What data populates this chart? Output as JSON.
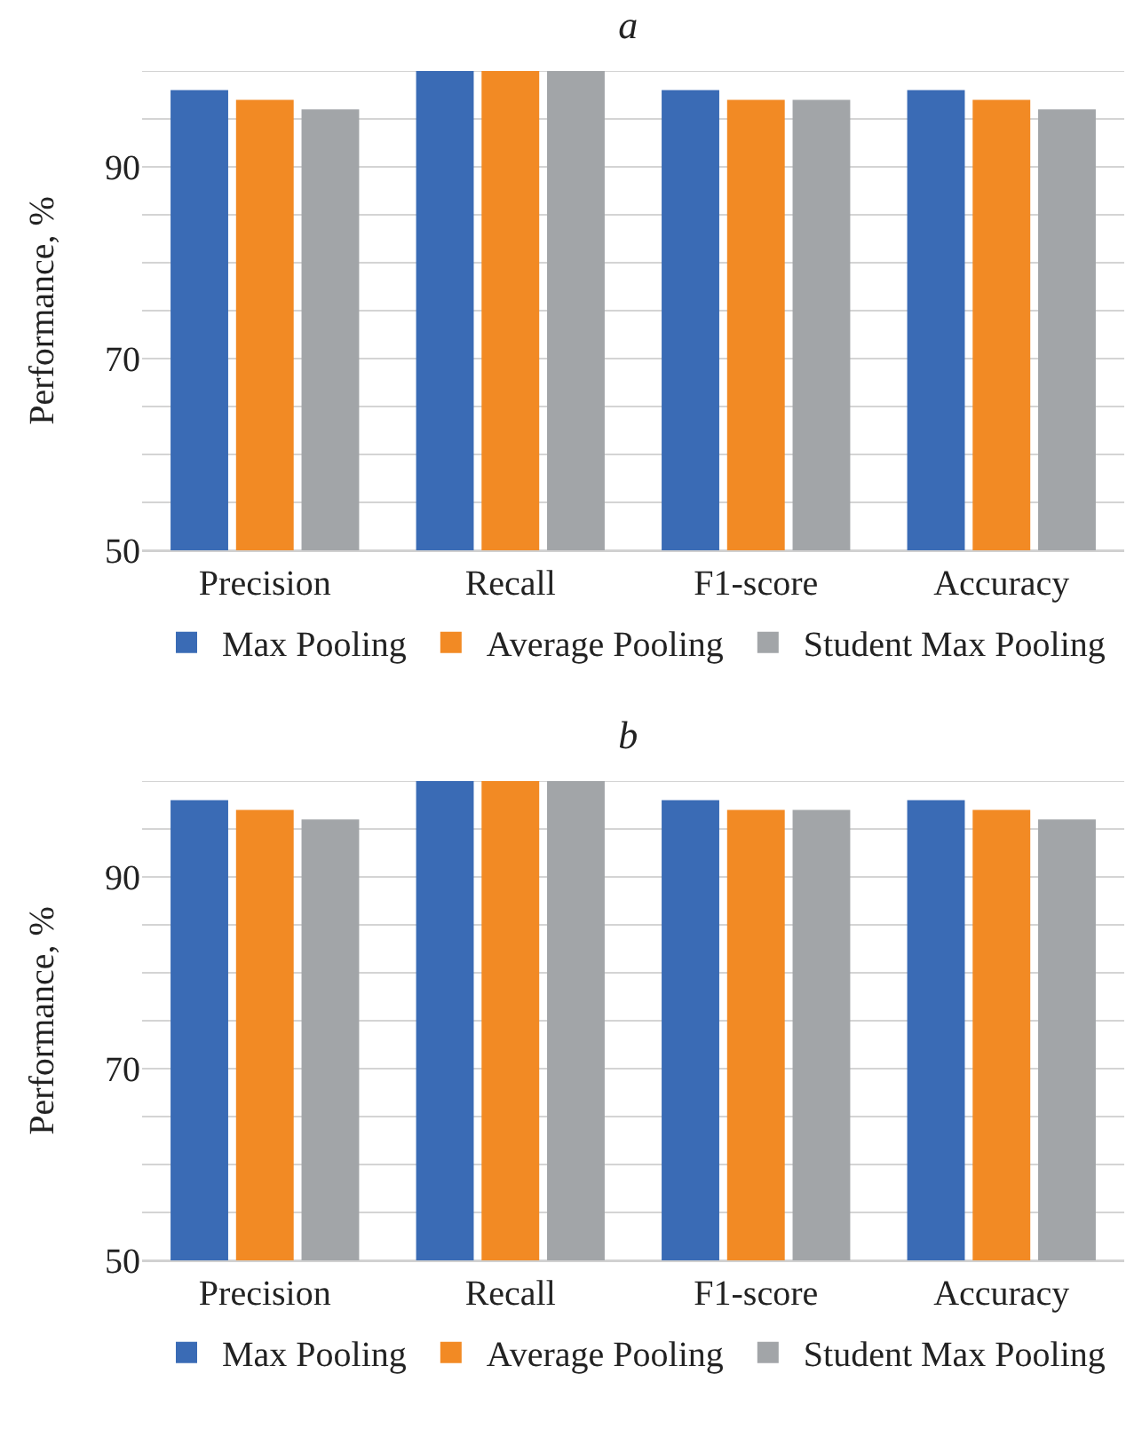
{
  "chart_data": [
    {
      "type": "bar",
      "title": "a",
      "ylabel": "Performance, %",
      "categories": [
        "Precision",
        "Recall",
        "F1-score",
        "Accuracy"
      ],
      "series": [
        {
          "name": "Max Pooling",
          "color": "#3a6bb5",
          "values": [
            98,
            100,
            98,
            98
          ]
        },
        {
          "name": "Average Pooling",
          "color": "#f28a24",
          "values": [
            97,
            100,
            97,
            97
          ]
        },
        {
          "name": "Student Max Pooling",
          "color": "#a2a5a8",
          "values": [
            96,
            100,
            97,
            96
          ]
        }
      ],
      "ylim": [
        50,
        100
      ],
      "yticks": [
        50,
        {
          "value": 55,
          "label": null
        },
        {
          "value": 60,
          "label": null
        },
        {
          "value": 65,
          "label": null
        },
        70,
        {
          "value": 75,
          "label": null
        },
        {
          "value": 80,
          "label": null
        },
        {
          "value": 85,
          "label": null
        },
        90,
        {
          "value": 95,
          "label": null
        },
        {
          "value": 100,
          "label": null
        }
      ],
      "grid": "y",
      "legend": "bottom"
    },
    {
      "type": "bar",
      "title": "b",
      "ylabel": "Performance, %",
      "categories": [
        "Precision",
        "Recall",
        "F1-score",
        "Accuracy"
      ],
      "series": [
        {
          "name": "Max Pooling",
          "color": "#3a6bb5",
          "values": [
            98,
            100,
            98,
            98
          ]
        },
        {
          "name": "Average Pooling",
          "color": "#f28a24",
          "values": [
            97,
            100,
            97,
            97
          ]
        },
        {
          "name": "Student Max Pooling",
          "color": "#a2a5a8",
          "values": [
            96,
            100,
            97,
            96
          ]
        }
      ],
      "ylim": [
        50,
        100
      ],
      "yticks": [
        50,
        {
          "value": 55,
          "label": null
        },
        {
          "value": 60,
          "label": null
        },
        {
          "value": 65,
          "label": null
        },
        70,
        {
          "value": 75,
          "label": null
        },
        {
          "value": 80,
          "label": null
        },
        {
          "value": 85,
          "label": null
        },
        90,
        {
          "value": 95,
          "label": null
        },
        {
          "value": 100,
          "label": null
        }
      ],
      "grid": "y",
      "legend": "bottom"
    }
  ]
}
